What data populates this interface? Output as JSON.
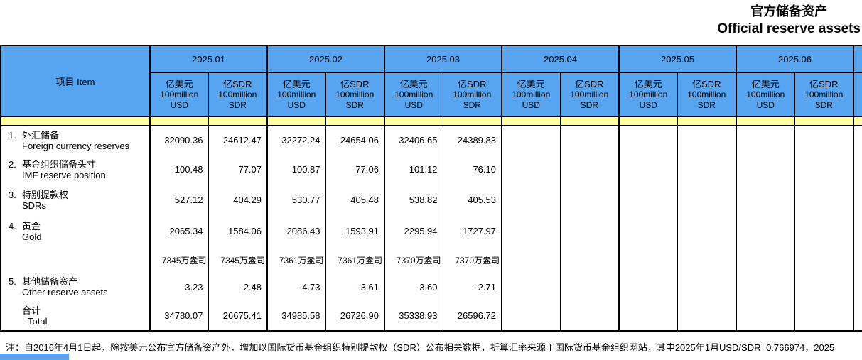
{
  "title": {
    "zh": "官方储备资产",
    "en": "Official reserve assets"
  },
  "table": {
    "item_header": "项目  Item",
    "months": [
      "2025.01",
      "2025.02",
      "2025.03",
      "2025.04",
      "2025.05",
      "2025.06"
    ],
    "units": {
      "usd": {
        "l1": "亿美元",
        "l2": "100million",
        "l3": "USD"
      },
      "sdr": {
        "l1": "亿SDR",
        "l2": "100million",
        "l3": "SDR"
      }
    },
    "rows": [
      {
        "num": "1.",
        "zh": "外汇储备",
        "en": "Foreign currency reserves",
        "values": [
          "32090.36",
          "24612.47",
          "32272.24",
          "24654.06",
          "32406.65",
          "24389.83"
        ]
      },
      {
        "num": "2.",
        "zh": "基金组织储备头寸",
        "en": "IMF reserve position",
        "values": [
          "100.48",
          "77.07",
          "100.87",
          "77.06",
          "101.12",
          "76.10"
        ]
      },
      {
        "num": "3.",
        "zh": "特别提款权",
        "en": "SDRs",
        "values": [
          "527.12",
          "404.29",
          "530.77",
          "405.48",
          "538.82",
          "405.53"
        ]
      },
      {
        "num": "4.",
        "zh": "黄金",
        "en": "Gold",
        "values": [
          "2065.34",
          "1584.06",
          "2086.43",
          "1593.91",
          "2295.94",
          "1727.97"
        ]
      },
      {
        "num": "",
        "zh": "",
        "en": "",
        "values": [
          "7345万盎司",
          "7345万盎司",
          "7361万盎司",
          "7361万盎司",
          "7370万盎司",
          "7370万盎司"
        ]
      },
      {
        "num": "5.",
        "zh": "其他储备资产",
        "en": "Other reserve assets",
        "values": [
          "-3.23",
          "-2.48",
          "-4.73",
          "-3.61",
          "-3.60",
          "-2.71"
        ]
      },
      {
        "num": "",
        "zh": "合计",
        "en": "Total",
        "values": [
          "34780.07",
          "26675.41",
          "34985.58",
          "26726.90",
          "35338.93",
          "26596.72"
        ]
      }
    ]
  },
  "footnote": "注：自2016年4月1日起，除按美元公布官方储备资产外，增加以国际货币基金组织特别提款权（SDR）公布相关数据，折算汇率来源于国际货币基金组织网站，其中2025年1月USD/SDR=0.766974，2025",
  "colors": {
    "header_blue": "#57a5f1",
    "strip_yellow": "#ffff9c",
    "border": "#000000",
    "text": "#000000"
  }
}
